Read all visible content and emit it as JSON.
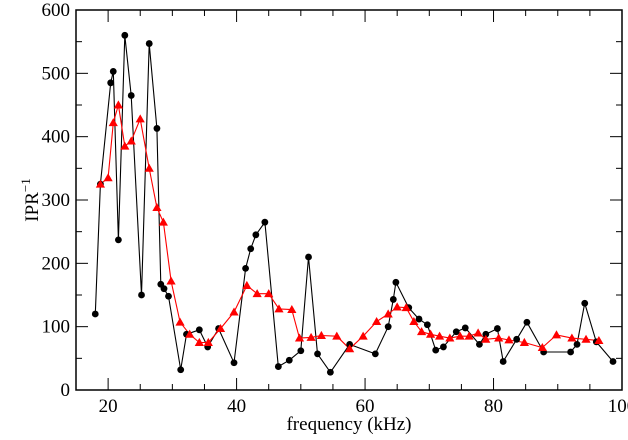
{
  "chart_data": {
    "type": "line",
    "xlabel": "frequency (kHz)",
    "ylabel": "IPR",
    "ylabel_superscript": "−1",
    "xlim": [
      15,
      100
    ],
    "ylim": [
      0,
      600
    ],
    "xticks": [
      20,
      40,
      60,
      80,
      100
    ],
    "yticks": [
      0,
      100,
      200,
      300,
      400,
      500,
      600
    ],
    "xtick_labels": [
      "20",
      "40",
      "60",
      "80",
      "100"
    ],
    "ytick_labels": [
      "0",
      "100",
      "200",
      "300",
      "400",
      "500",
      "600"
    ],
    "grid": false,
    "series": [
      {
        "marker": "circle",
        "color": "#000000",
        "x": [
          18.0,
          18.8,
          20.4,
          20.8,
          21.6,
          22.6,
          23.6,
          25.2,
          26.4,
          27.6,
          28.2,
          28.7,
          29.4,
          31.3,
          32.2,
          34.2,
          35.5,
          37.2,
          39.6,
          41.4,
          42.2,
          43.0,
          44.4,
          46.5,
          48.2,
          50.0,
          51.2,
          52.6,
          54.6,
          57.6,
          61.6,
          63.6,
          64.4,
          64.8,
          66.8,
          68.4,
          69.7,
          71.0,
          72.2,
          74.2,
          75.6,
          77.8,
          78.8,
          80.6,
          81.5,
          83.6,
          85.2,
          87.8,
          92.0,
          93.0,
          94.2,
          96.0,
          98.6
        ],
        "y": [
          120,
          325,
          485,
          503,
          237,
          560,
          465,
          150,
          547,
          413,
          167,
          160,
          148,
          32,
          88,
          95,
          68,
          97,
          43,
          192,
          223,
          245,
          265,
          37,
          47,
          62,
          210,
          57,
          28,
          72,
          57,
          100,
          143,
          170,
          130,
          112,
          103,
          63,
          68,
          92,
          98,
          72,
          88,
          97,
          45,
          80,
          107,
          60,
          60,
          72,
          137,
          76,
          45
        ]
      },
      {
        "marker": "triangle",
        "color": "#ff0000",
        "x": [
          18.8,
          20.0,
          20.8,
          21.6,
          22.6,
          23.6,
          25.0,
          26.4,
          27.6,
          28.6,
          29.8,
          31.2,
          32.7,
          34.2,
          35.6,
          37.5,
          39.6,
          41.6,
          43.2,
          45.0,
          46.6,
          48.6,
          49.8,
          51.6,
          53.2,
          55.6,
          57.6,
          59.7,
          61.8,
          63.6,
          65.0,
          66.4,
          67.6,
          68.8,
          70.2,
          71.6,
          73.2,
          74.8,
          76.2,
          77.6,
          78.8,
          80.8,
          82.4,
          84.8,
          87.6,
          89.8,
          92.2,
          94.4,
          96.4
        ],
        "y": [
          325,
          335,
          422,
          450,
          385,
          393,
          428,
          350,
          288,
          265,
          172,
          107,
          88,
          75,
          75,
          97,
          123,
          165,
          152,
          152,
          128,
          127,
          82,
          83,
          86,
          85,
          65,
          85,
          108,
          120,
          131,
          130,
          108,
          92,
          88,
          85,
          82,
          85,
          85,
          90,
          80,
          82,
          79,
          75,
          67,
          87,
          82,
          80,
          78
        ]
      }
    ]
  }
}
